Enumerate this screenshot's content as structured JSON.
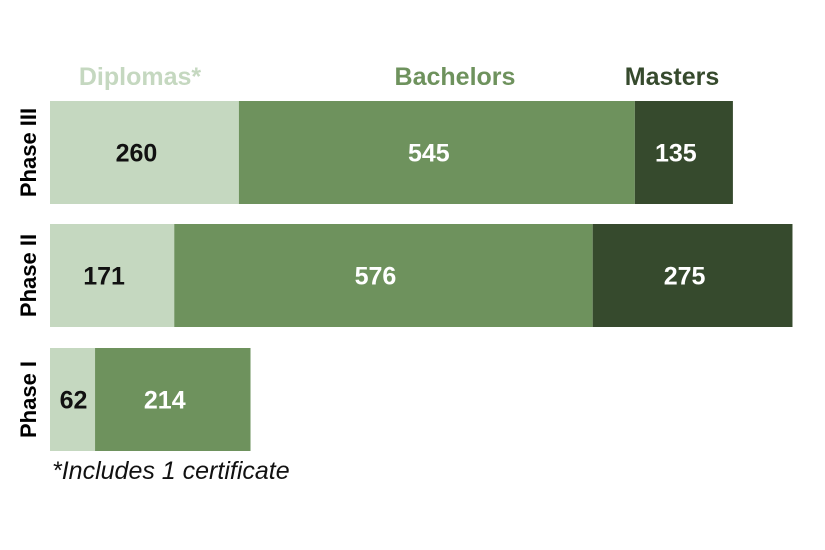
{
  "chart_data": {
    "type": "bar",
    "orientation": "horizontal",
    "stacked": true,
    "categories": [
      "Phase III",
      "Phase II",
      "Phase I"
    ],
    "series": [
      {
        "name": "Diplomas*",
        "values": [
          260,
          171,
          62
        ],
        "color": "#c5d8c0"
      },
      {
        "name": "Bachelors",
        "values": [
          545,
          576,
          214
        ],
        "color": "#6e925d"
      },
      {
        "name": "Masters",
        "values": [
          135,
          275,
          0
        ],
        "color": "#364a2d"
      }
    ],
    "value_label_colors": [
      "#111111",
      "#ffffff",
      "#ffffff"
    ],
    "legend_text_colors": [
      "#c5d8c0",
      "#6e925d",
      "#364a2d"
    ],
    "legend_position": "top",
    "grid": false,
    "axes_visible": false,
    "annotations": [
      "*Includes 1 certificate"
    ]
  }
}
